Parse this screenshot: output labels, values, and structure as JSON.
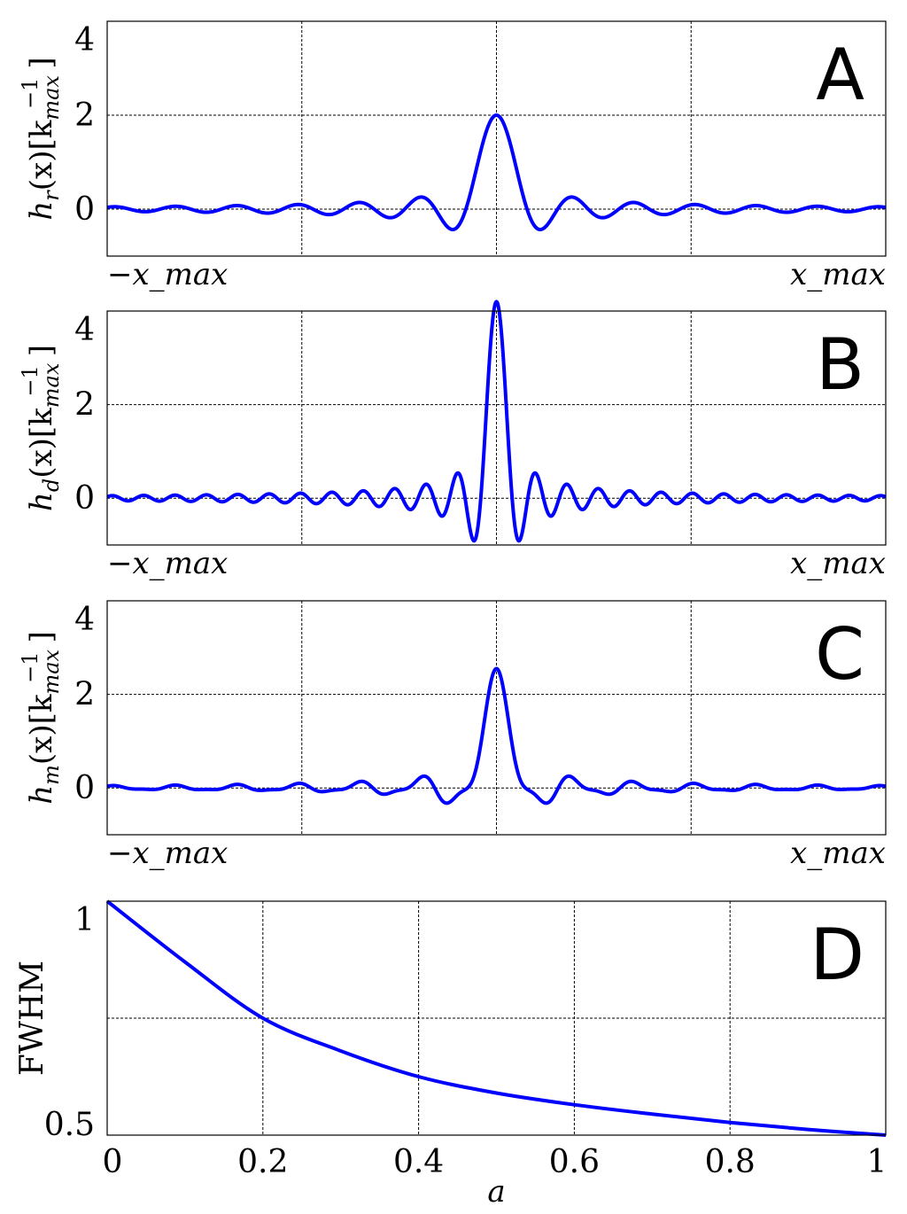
{
  "chart_data": [
    {
      "type": "line",
      "panel_label": "A",
      "ylabel": "h_r(x)[k_max^-1]",
      "ylabel_parts": {
        "base": "h",
        "sub": "r",
        "arg": "(x)[k",
        "unit_sub": "max",
        "unit_sup": "−1",
        "close": "]"
      },
      "xtick_labels": [
        "−x_max",
        "x_max"
      ],
      "xtick_parts": [
        {
          "pre": "−x",
          "sub": "max"
        },
        {
          "pre": "x",
          "sub": "max"
        }
      ],
      "xlim": [
        -1,
        1
      ],
      "ylim": [
        -1,
        4
      ],
      "yticks": [
        0,
        2,
        4
      ],
      "ytick_labels": [
        "0",
        "2",
        "4"
      ],
      "xgrid": [
        -0.5,
        0,
        0.5
      ],
      "ygrid": [
        0,
        2
      ],
      "series": [
        {
          "name": "h_r",
          "shape": "sinc",
          "peak": 2.0,
          "k": 40
        }
      ],
      "color": "#0000ff"
    },
    {
      "type": "line",
      "panel_label": "B",
      "ylabel": "h_d(x)[k_max^-1]",
      "ylabel_parts": {
        "base": "h",
        "sub": "d",
        "arg": "(x)[k",
        "unit_sub": "max",
        "unit_sup": "−1",
        "close": "]"
      },
      "xtick_labels": [
        "−x_max",
        "x_max"
      ],
      "xtick_parts": [
        {
          "pre": "−x",
          "sub": "max"
        },
        {
          "pre": "x",
          "sub": "max"
        }
      ],
      "xlim": [
        -1,
        1
      ],
      "ylim": [
        -1,
        4
      ],
      "yticks": [
        0,
        2,
        4
      ],
      "ytick_labels": [
        "0",
        "2",
        "4"
      ],
      "xgrid": [
        -0.5,
        0,
        0.5
      ],
      "ygrid": [
        0,
        2
      ],
      "series": [
        {
          "name": "h_d",
          "shape": "sinc",
          "peak": 4.2,
          "k": 78
        }
      ],
      "color": "#0000ff"
    },
    {
      "type": "line",
      "panel_label": "C",
      "ylabel": "h_m(x)[k_max^-1]",
      "ylabel_parts": {
        "base": "h",
        "sub": "m",
        "arg": "(x)[k",
        "unit_sub": "max",
        "unit_sup": "−1",
        "close": "]"
      },
      "xtick_labels": [
        "−x_max",
        "x_max"
      ],
      "xtick_parts": [
        {
          "pre": "−x",
          "sub": "max"
        },
        {
          "pre": "x",
          "sub": "max"
        }
      ],
      "xlim": [
        -1,
        1
      ],
      "ylim": [
        -1,
        4
      ],
      "yticks": [
        0,
        2,
        4
      ],
      "ytick_labels": [
        "0",
        "2",
        "4"
      ],
      "xgrid": [
        -0.5,
        0,
        0.5
      ],
      "ygrid": [
        0,
        2
      ],
      "series": [
        {
          "name": "h_m",
          "shape": "mix",
          "a": 0.25,
          "components": [
            {
              "peak": 2.0,
              "k": 40
            },
            {
              "peak": 4.2,
              "k": 78
            }
          ]
        }
      ],
      "color": "#0000ff"
    },
    {
      "type": "line",
      "panel_label": "D",
      "ylabel": "FWHM",
      "xlabel": "a",
      "xlim": [
        0,
        1
      ],
      "ylim": [
        0.5,
        1
      ],
      "xticks": [
        0,
        0.2,
        0.4,
        0.6,
        0.8,
        1
      ],
      "xtick_labels": [
        "0",
        "0.2",
        "0.4",
        "0.6",
        "0.8",
        "1"
      ],
      "yticks": [
        0.5,
        1
      ],
      "ytick_labels": [
        "0.5",
        "1"
      ],
      "xgrid": [
        0.2,
        0.4,
        0.6,
        0.8
      ],
      "ygrid": [
        0.75
      ],
      "series": [
        {
          "name": "FWHM",
          "x": [
            0,
            0.1,
            0.2,
            0.3,
            0.4,
            0.5,
            0.6,
            0.7,
            0.8,
            0.9,
            1.0
          ],
          "y": [
            1.0,
            0.87,
            0.75,
            0.68,
            0.625,
            0.59,
            0.565,
            0.545,
            0.527,
            0.512,
            0.5
          ]
        }
      ],
      "color": "#0000ff"
    }
  ]
}
